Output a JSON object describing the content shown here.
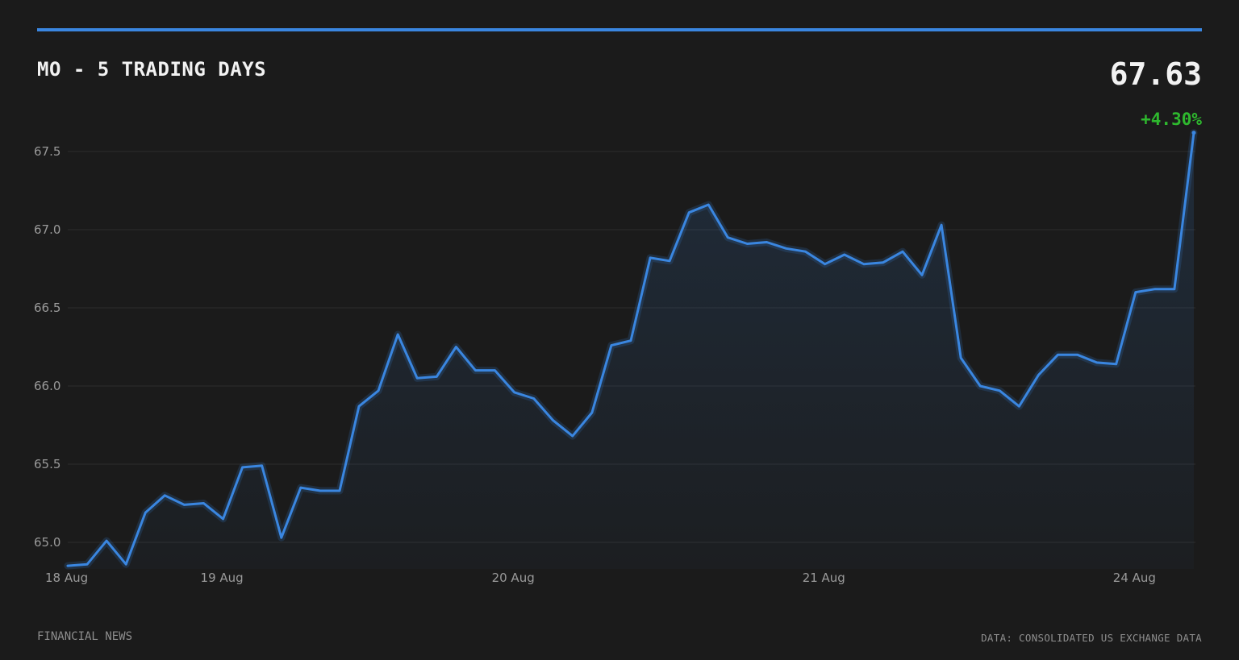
{
  "header": {
    "title": "MO - 5 TRADING DAYS",
    "price": "67.63",
    "change": "+4.30%"
  },
  "footer": {
    "source_left": "FINANCIAL NEWS",
    "source_right": "DATA: CONSOLIDATED US EXCHANGE DATA"
  },
  "colors": {
    "background": "#1b1b1b",
    "line": "#3a86e0",
    "positive": "#2eb82e",
    "grid": "#2d2d2d",
    "text_muted": "#9a9a9a"
  },
  "chart_data": {
    "type": "area",
    "title": "MO - 5 TRADING DAYS",
    "xlabel": "",
    "ylabel": "",
    "ylim": [
      64.84,
      67.63
    ],
    "yticks": [
      65.0,
      65.5,
      66.0,
      66.5,
      67.0,
      67.5
    ],
    "ytick_labels": [
      "65.0",
      "65.5",
      "66.0",
      "66.5",
      "67.0",
      "67.5"
    ],
    "xtick_labels": [
      "18 Aug",
      "19 Aug",
      "20 Aug",
      "21 Aug",
      "24 Aug"
    ],
    "xtick_indices": [
      0,
      8,
      23,
      39,
      55
    ],
    "grid": true,
    "series": [
      {
        "values": [
          64.85,
          64.86,
          65.01,
          64.86,
          65.19,
          65.3,
          65.24,
          65.25,
          65.15,
          65.48,
          65.49,
          65.03,
          65.35,
          65.33,
          65.33,
          65.87,
          65.97,
          66.33,
          66.05,
          66.06,
          66.25,
          66.1,
          66.1,
          65.96,
          65.92,
          65.78,
          65.68,
          65.83,
          66.26,
          66.29,
          66.82,
          66.8,
          67.11,
          67.16,
          66.95,
          66.91,
          66.92,
          66.88,
          66.86,
          66.78,
          66.84,
          66.78,
          66.79,
          66.86,
          66.71,
          67.03,
          66.18,
          66.0,
          65.97,
          65.87,
          66.07,
          66.2,
          66.2,
          66.15,
          66.14,
          66.6,
          66.62,
          66.62,
          67.62
        ]
      }
    ]
  }
}
